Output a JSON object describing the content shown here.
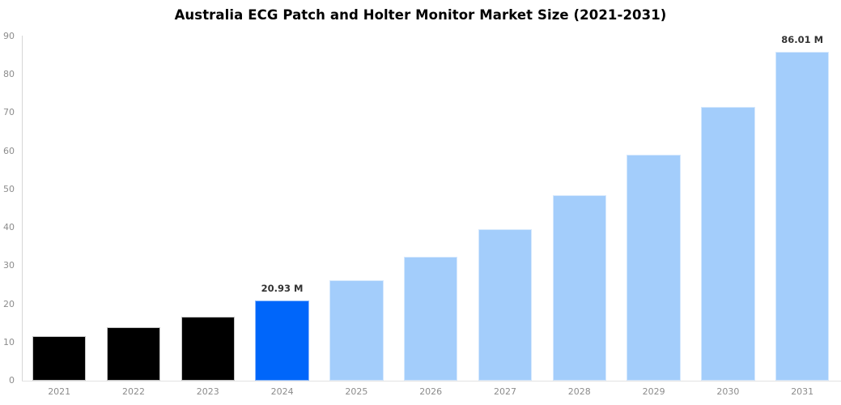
{
  "title": "Australia ECG Patch and Holter Monitor Market Size (2021-2031)",
  "chart_data": {
    "type": "bar",
    "title": "Australia ECG Patch and Holter Monitor Market Size (2021-2031)",
    "categories": [
      "2021",
      "2022",
      "2023",
      "2024",
      "2025",
      "2026",
      "2027",
      "2028",
      "2029",
      "2030",
      "2031"
    ],
    "values": [
      11.6,
      13.9,
      16.8,
      20.93,
      26.2,
      32.3,
      39.6,
      48.5,
      59.1,
      71.6,
      86.01
    ],
    "bar_labels": [
      "",
      "",
      "",
      "20.93 M",
      "",
      "",
      "",
      "",
      "",
      "",
      "86.01 M"
    ],
    "xlabel": "",
    "ylabel": "",
    "ylim": [
      0,
      90
    ],
    "yticks": [
      0,
      10,
      20,
      30,
      40,
      50,
      60,
      70,
      80,
      90
    ],
    "grid": false,
    "legend": false,
    "bar_colors": [
      "#000000",
      "#000000",
      "#000000",
      "#0066FA",
      "#A3CDFB",
      "#A3CDFB",
      "#A3CDFB",
      "#A3CDFB",
      "#A3CDFB",
      "#A3CDFB",
      "#A3CDFB"
    ],
    "colors": {
      "historical_bar": "#000000",
      "highlight_bar": "#0066FA",
      "forecast_bar": "#A3CDFB",
      "axis_line": "#D9D9D9",
      "tick_label_text": "#8C8C8C",
      "value_label_text": "#333333",
      "title_text": "#000000",
      "background": "#FFFFFF"
    }
  }
}
